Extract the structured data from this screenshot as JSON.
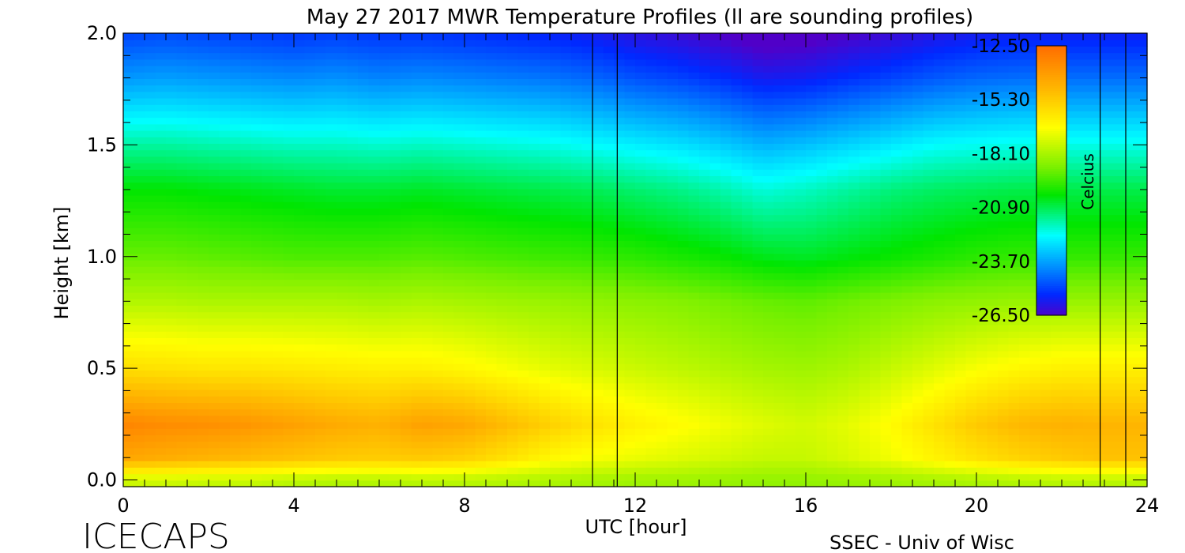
{
  "chart_data": {
    "type": "heatmap",
    "title": "May 27 2017 MWR Temperature Profiles (ll are sounding profiles)",
    "xlabel": "UTC [hour]",
    "ylabel": "Height [km]",
    "xlim": [
      0,
      24
    ],
    "ylim": [
      -0.03,
      2.0
    ],
    "x_ticks": [
      0,
      4,
      8,
      12,
      16,
      20,
      24
    ],
    "x_tick_labels": [
      "0",
      "4",
      "8",
      "12",
      "16",
      "20",
      "24"
    ],
    "y_ticks": [
      0.0,
      0.5,
      1.0,
      1.5,
      2.0
    ],
    "y_tick_labels": [
      "0.0",
      "0.5",
      "1.0",
      "1.5",
      "2.0"
    ],
    "colorbar": {
      "label": "Celcius",
      "range": [
        -26.5,
        -12.5
      ],
      "ticks": [
        -12.5,
        -15.3,
        -18.1,
        -20.9,
        -23.7,
        -26.5
      ],
      "tick_labels": [
        "-12.50",
        "-15.30",
        "-18.10",
        "-20.90",
        "-23.70",
        "-26.50"
      ],
      "placement": "top-right"
    },
    "sounding_lines_hour": [
      11.0,
      11.58,
      22.9,
      23.5
    ],
    "temperature_grid": {
      "units": "Celcius",
      "hours": [
        0,
        1,
        2,
        3,
        4,
        5,
        6,
        7,
        8,
        9,
        10,
        11,
        12,
        13,
        14,
        15,
        16,
        17,
        18,
        19,
        20,
        21,
        22,
        23,
        24
      ],
      "heights_km": [
        0.0,
        0.1,
        0.25,
        0.5,
        0.8,
        1.0,
        1.3,
        1.5,
        1.8,
        2.0
      ],
      "values": [
        [
          -17.5,
          -17.5,
          -17.6,
          -17.6,
          -17.8,
          -17.9,
          -17.9,
          -17.8,
          -17.8,
          -17.9,
          -18.0,
          -18.1,
          -18.2,
          -18.2,
          -18.3,
          -18.4,
          -18.4,
          -18.3,
          -18.2,
          -18.1,
          -18.0,
          -17.9,
          -17.8,
          -17.8,
          -17.8
        ],
        [
          -14.2,
          -14.4,
          -14.6,
          -14.8,
          -15.0,
          -15.2,
          -15.3,
          -15.2,
          -15.4,
          -15.9,
          -16.5,
          -16.8,
          -17.0,
          -17.2,
          -17.4,
          -17.6,
          -17.6,
          -17.3,
          -16.9,
          -16.4,
          -15.9,
          -15.5,
          -15.2,
          -15.0,
          -15.0
        ],
        [
          -13.2,
          -13.4,
          -13.5,
          -13.7,
          -14.0,
          -14.3,
          -14.5,
          -14.0,
          -14.2,
          -14.8,
          -15.4,
          -15.9,
          -16.3,
          -16.6,
          -16.9,
          -17.2,
          -17.4,
          -17.1,
          -16.6,
          -15.9,
          -15.2,
          -14.7,
          -14.5,
          -14.6,
          -14.6
        ],
        [
          -15.8,
          -15.9,
          -16.0,
          -16.0,
          -16.1,
          -16.2,
          -16.3,
          -16.3,
          -16.5,
          -16.8,
          -17.1,
          -17.3,
          -17.5,
          -17.7,
          -17.9,
          -18.1,
          -18.2,
          -18.0,
          -17.6,
          -17.2,
          -16.8,
          -16.5,
          -16.3,
          -16.3,
          -16.3
        ],
        [
          -17.9,
          -17.9,
          -18.0,
          -18.0,
          -18.0,
          -18.0,
          -18.1,
          -18.0,
          -18.1,
          -18.2,
          -18.3,
          -18.4,
          -18.5,
          -18.6,
          -18.8,
          -19.0,
          -19.1,
          -18.9,
          -18.7,
          -18.5,
          -18.4,
          -18.3,
          -18.3,
          -18.3,
          -18.3
        ],
        [
          -19.0,
          -19.0,
          -19.1,
          -19.2,
          -19.3,
          -19.3,
          -19.3,
          -19.2,
          -19.3,
          -19.4,
          -19.5,
          -19.6,
          -19.7,
          -19.9,
          -20.1,
          -20.4,
          -20.5,
          -20.3,
          -20.1,
          -19.9,
          -19.7,
          -19.6,
          -19.6,
          -19.6,
          -19.6
        ],
        [
          -20.2,
          -20.2,
          -20.3,
          -20.4,
          -20.5,
          -20.6,
          -20.6,
          -20.5,
          -20.6,
          -20.7,
          -20.8,
          -20.9,
          -21.1,
          -21.3,
          -21.6,
          -22.0,
          -21.8,
          -21.5,
          -21.2,
          -21.0,
          -20.9,
          -20.8,
          -20.8,
          -20.8,
          -20.8
        ],
        [
          -21.5,
          -21.5,
          -21.6,
          -21.7,
          -21.8,
          -21.8,
          -21.9,
          -21.8,
          -21.9,
          -22.0,
          -22.1,
          -22.3,
          -22.5,
          -22.7,
          -23.0,
          -23.4,
          -23.2,
          -22.9,
          -22.6,
          -22.3,
          -22.2,
          -22.1,
          -22.1,
          -22.1,
          -22.1
        ],
        [
          -23.8,
          -23.7,
          -23.8,
          -23.9,
          -24.0,
          -23.9,
          -24.1,
          -24.0,
          -24.1,
          -24.2,
          -24.3,
          -24.5,
          -24.8,
          -25.0,
          -25.3,
          -25.7,
          -25.6,
          -25.3,
          -25.0,
          -24.7,
          -24.5,
          -24.4,
          -24.4,
          -24.4,
          -24.4
        ],
        [
          -25.0,
          -24.9,
          -25.0,
          -25.1,
          -25.2,
          -25.1,
          -25.2,
          -25.2,
          -25.3,
          -25.4,
          -25.5,
          -25.7,
          -26.0,
          -26.2,
          -26.5,
          -26.9,
          -26.8,
          -26.5,
          -26.2,
          -25.9,
          -25.7,
          -25.6,
          -25.6,
          -25.6,
          -25.6
        ]
      ]
    }
  },
  "footer": {
    "left": "ICECAPS",
    "right": "SSEC - Univ of Wisc"
  }
}
